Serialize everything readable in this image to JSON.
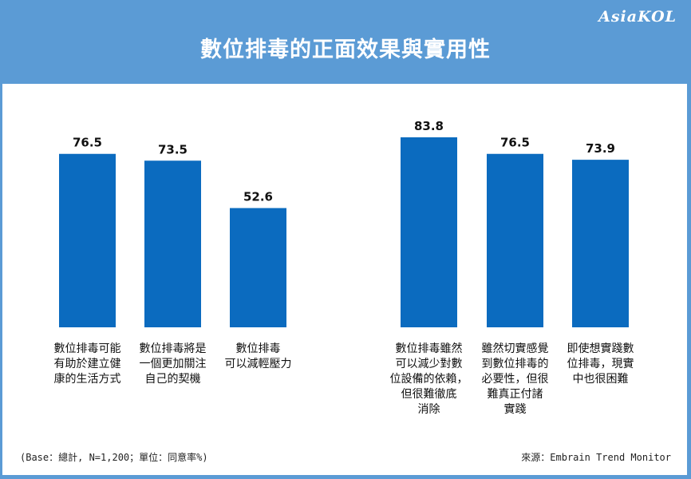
{
  "brand": "AsiaKOL",
  "header": {
    "title": "數位排毒的正面效果與實用性"
  },
  "chart_data": [
    {
      "type": "bar",
      "categories": [
        "數位排毒可能有助於建立健康的生活方式",
        "數位排毒將是一個更加關注自己的契機",
        "數位排毒可以減輕壓力"
      ],
      "category_lines": [
        [
          "數位排毒可能",
          "有助於建立健",
          "康的生活方式"
        ],
        [
          "數位排毒將是",
          "一個更加關注",
          "自己的契機"
        ],
        [
          "數位排毒",
          "可以減輕壓力"
        ]
      ],
      "values": [
        76.5,
        73.5,
        52.6
      ],
      "value_labels": [
        "76.5",
        "73.5",
        "52.6"
      ],
      "ylim": [
        0,
        100
      ],
      "bar_color": "#0b6bbf"
    },
    {
      "type": "bar",
      "categories": [
        "數位排毒雖然可以減少對數位設備的依賴，但很難徹底消除",
        "雖然切實感覺到數位排毒的必要性，但很難真正付諸實踐",
        "即使想實踐數位排毒，現實中也很困難"
      ],
      "category_lines": [
        [
          "數位排毒雖然",
          "可以減少對數",
          "位設備的依賴，",
          "但很難徹底",
          "消除"
        ],
        [
          "雖然切實感覺",
          "到數位排毒的",
          "必要性，但很",
          "難真正付諸",
          "實踐"
        ],
        [
          "即使想實踐數",
          "位排毒，現實",
          "中也很困難"
        ]
      ],
      "values": [
        83.8,
        76.5,
        73.9
      ],
      "value_labels": [
        "83.8",
        "76.5",
        "73.9"
      ],
      "ylim": [
        0,
        100
      ],
      "bar_color": "#0b6bbf"
    }
  ],
  "footer": {
    "base": "(Base：總計, N=1,200；單位：同意率%)",
    "source": "來源：Embrain Trend Monitor"
  }
}
